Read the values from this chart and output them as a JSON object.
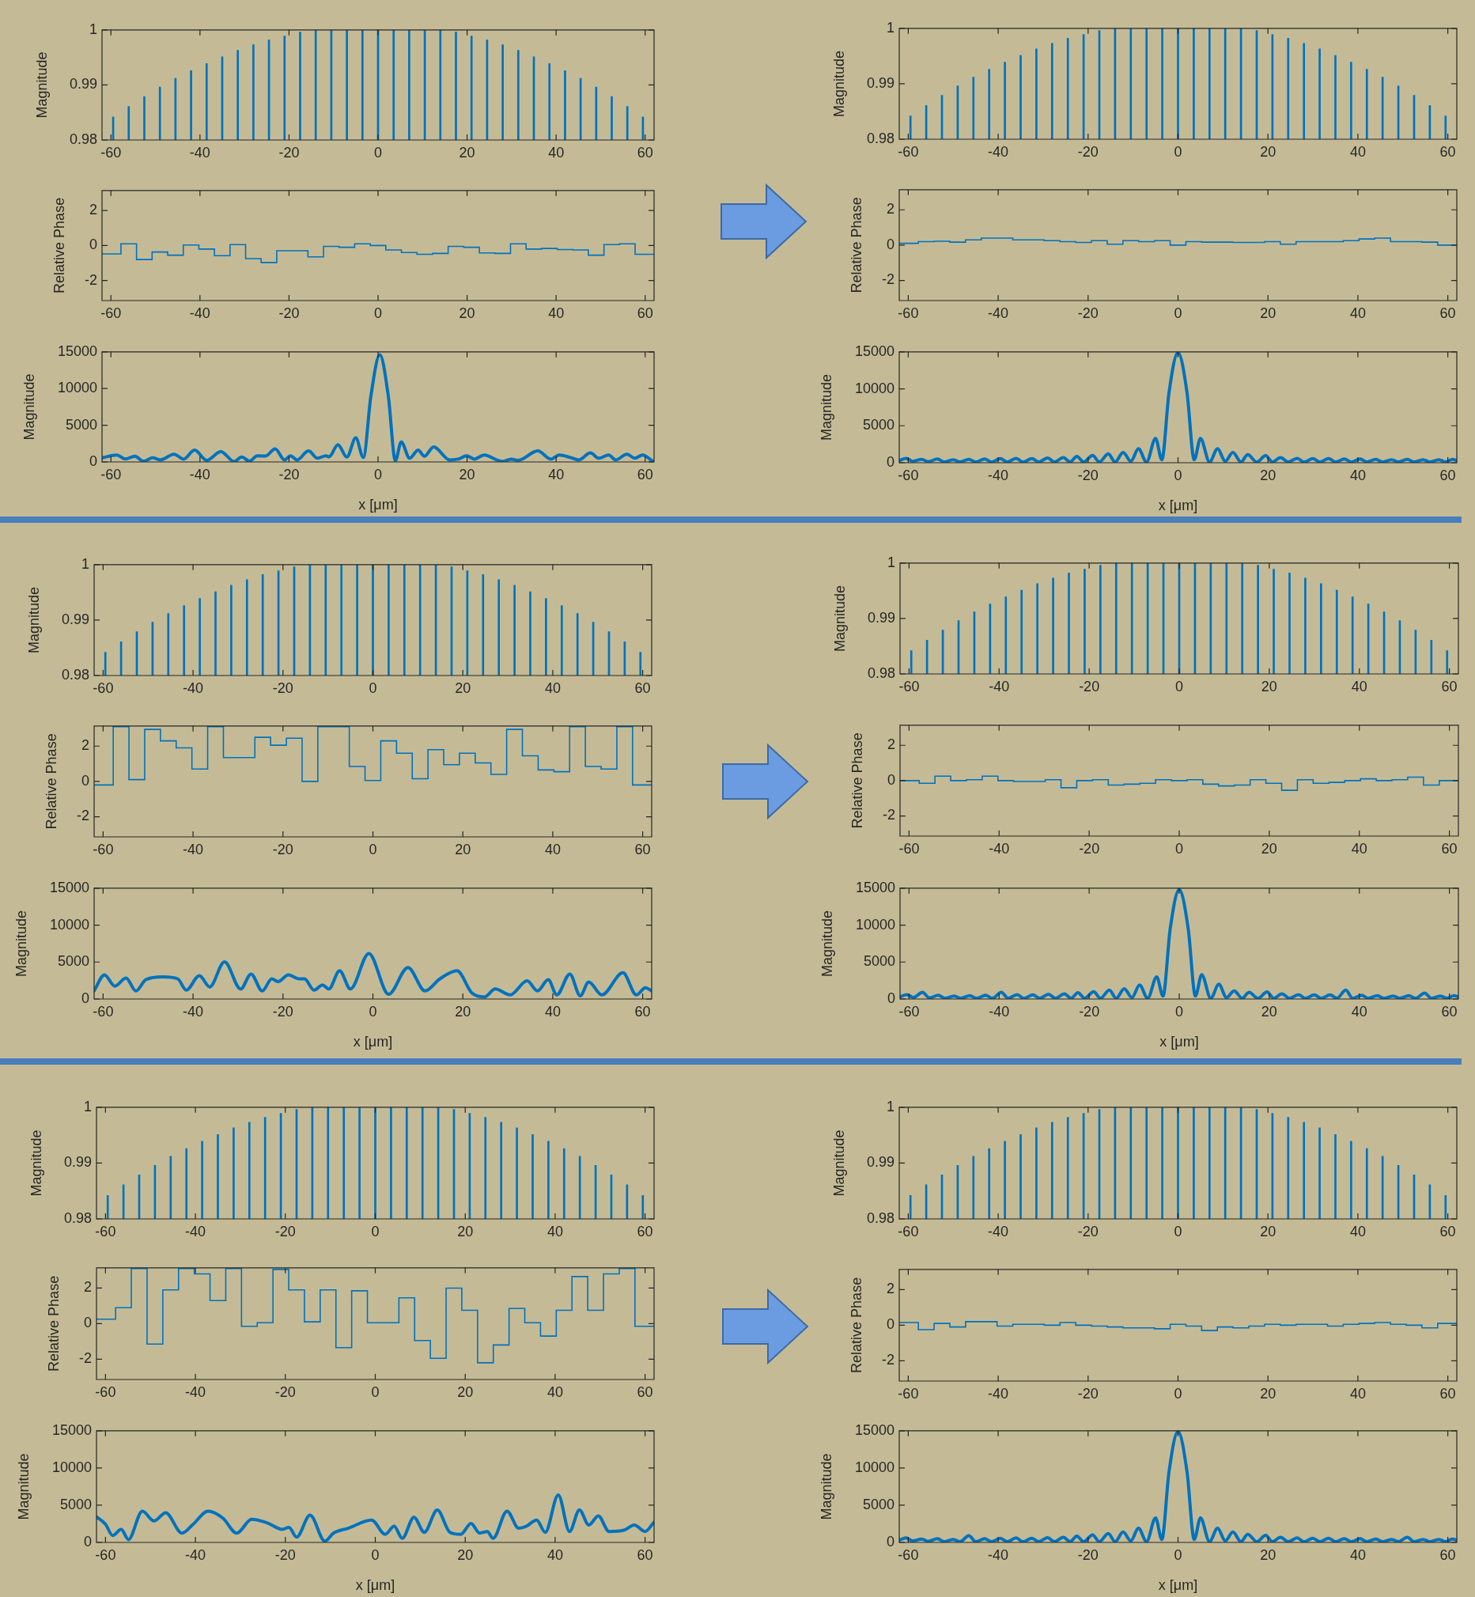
{
  "chart_data": [
    {
      "type": "bar",
      "x": [
        -59.5,
        -56,
        -52.5,
        -49,
        -45.5,
        -42,
        -38.5,
        -35,
        -31.5,
        -28,
        -24.5,
        -21,
        -17.5,
        -14,
        -10.5,
        -7,
        -3.5,
        0,
        3.5,
        7,
        10.5,
        14,
        17.5,
        21,
        24.5,
        28,
        31.5,
        35,
        38.5,
        42,
        45.5,
        49,
        52.5,
        56,
        59.5
      ],
      "values": [
        0.9842,
        0.9861,
        0.9879,
        0.9896,
        0.9912,
        0.9926,
        0.9939,
        0.9951,
        0.9963,
        0.9973,
        0.9982,
        0.9989,
        0.9996,
        1,
        1,
        1,
        1,
        1,
        1,
        1,
        1,
        1,
        0.9996,
        0.9989,
        0.9982,
        0.9973,
        0.9963,
        0.9951,
        0.9939,
        0.9926,
        0.9912,
        0.9896,
        0.9879,
        0.9861,
        0.9842
      ],
      "color": "#0072bd",
      "xlim": [
        -62,
        62
      ],
      "xticks": [
        -60,
        -40,
        -20,
        0,
        20,
        40,
        60
      ],
      "ylim": [
        0.98,
        1
      ],
      "yticks": [
        0.98,
        0.99,
        1
      ],
      "ylabel": "Magnitude"
    },
    {
      "type": "step",
      "x": [
        -62,
        -57.75,
        -54.25,
        -50.75,
        -47.25,
        -43.75,
        -40.25,
        -36.75,
        -33.25,
        -29.75,
        -26.25,
        -22.75,
        -19.25,
        -15.75,
        -12.25,
        -8.75,
        -5.25,
        -1.75,
        1.75,
        5.25,
        8.75,
        12.25,
        15.75,
        19.25,
        22.75,
        26.25,
        29.75,
        33.25,
        36.75,
        40.25,
        43.75,
        47.25,
        50.75,
        54.25,
        57.75,
        62
      ],
      "values": [
        -0.48,
        0.1,
        -0.8,
        -0.37,
        -0.55,
        0.03,
        -0.2,
        -0.58,
        0.05,
        -0.75,
        -0.97,
        -0.3,
        -0.3,
        -0.65,
        -0.05,
        -0.1,
        0.1,
        0,
        -0.25,
        -0.4,
        -0.5,
        -0.45,
        -0.05,
        -0.1,
        -0.42,
        -0.45,
        0.1,
        -0.2,
        -0.17,
        -0.23,
        -0.25,
        -0.55,
        0.05,
        0.1,
        -0.5,
        -0.5
      ],
      "color": "#0072bd",
      "xlim": [
        -62,
        62
      ],
      "xticks": [
        -60,
        -40,
        -20,
        0,
        20,
        40,
        60
      ],
      "ylim": [
        -3.1416,
        3.1416
      ],
      "yticks": [
        -2,
        0,
        2
      ],
      "ylabel": "Relative Phase"
    },
    {
      "type": "line",
      "x": [
        -62,
        -58.7,
        -56.8,
        -54.6,
        -52.7,
        -50.6,
        -48.9,
        -45.8,
        -43.7,
        -41.2,
        -38.5,
        -35.3,
        -32.3,
        -30.6,
        -28.9,
        -27.1,
        -25.3,
        -23.1,
        -21,
        -19.7,
        -18.2,
        -15.6,
        -13.6,
        -11.7,
        -11,
        -9,
        -7,
        -5,
        -3.3,
        -1.6,
        0.4,
        2.3,
        3.9,
        5.2,
        7.1,
        9,
        10.4,
        12.5,
        16.1,
        18,
        19.9,
        21.6,
        23.9,
        26.6,
        28,
        29.9,
        31.4,
        35.9,
        38.8,
        40.7,
        43.2,
        45.1,
        47.7,
        49.6,
        51.8,
        53.4,
        55.9,
        57.7,
        59.4,
        61.8
      ],
      "values": [
        560,
        950,
        400,
        780,
        100,
        560,
        280,
        1060,
        390,
        1620,
        220,
        1400,
        60,
        670,
        110,
        840,
        800,
        1780,
        280,
        840,
        280,
        1500,
        500,
        840,
        700,
        2340,
        670,
        3290,
        610,
        9000,
        14600,
        9000,
        170,
        2730,
        500,
        1620,
        780,
        2060,
        280,
        390,
        840,
        390,
        950,
        280,
        60,
        390,
        220,
        1500,
        390,
        950,
        610,
        280,
        1230,
        500,
        950,
        280,
        1060,
        500,
        950,
        60
      ],
      "color": "#0072bd",
      "xlim": [
        -62,
        62
      ],
      "xticks": [
        -60,
        -40,
        -20,
        0,
        20,
        40,
        60
      ],
      "ylim": [
        0,
        15000
      ],
      "yticks": [
        0,
        5000,
        10000,
        15000
      ],
      "ylabel": "Magnitude",
      "xlabel": "x [μm]"
    },
    {
      "type": "bar",
      "x": [
        -59.5,
        -56,
        -52.5,
        -49,
        -45.5,
        -42,
        -38.5,
        -35,
        -31.5,
        -28,
        -24.5,
        -21,
        -17.5,
        -14,
        -10.5,
        -7,
        -3.5,
        0,
        3.5,
        7,
        10.5,
        14,
        17.5,
        21,
        24.5,
        28,
        31.5,
        35,
        38.5,
        42,
        45.5,
        49,
        52.5,
        56,
        59.5
      ],
      "values": [
        0.9842,
        0.9861,
        0.9879,
        0.9896,
        0.9912,
        0.9926,
        0.9939,
        0.9951,
        0.9963,
        0.9973,
        0.9982,
        0.9989,
        0.9996,
        1,
        1,
        1,
        1,
        1,
        1,
        1,
        1,
        1,
        0.9996,
        0.9989,
        0.9982,
        0.9973,
        0.9963,
        0.9951,
        0.9939,
        0.9926,
        0.9912,
        0.9896,
        0.9879,
        0.9861,
        0.9842
      ],
      "color": "#0072bd",
      "xlim": [
        -62,
        62
      ],
      "xticks": [
        -60,
        -40,
        -20,
        0,
        20,
        40,
        60
      ],
      "ylim": [
        0.98,
        1
      ],
      "yticks": [
        0.98,
        0.99,
        1
      ],
      "ylabel": "Magnitude"
    },
    {
      "type": "step",
      "x": [
        -62,
        -57.75,
        -54.25,
        -50.75,
        -47.25,
        -43.75,
        -40.25,
        -36.75,
        -33.25,
        -29.75,
        -26.25,
        -22.75,
        -19.25,
        -15.75,
        -12.25,
        -8.75,
        -5.25,
        -1.75,
        1.75,
        5.25,
        8.75,
        12.25,
        15.75,
        19.25,
        22.75,
        26.25,
        29.75,
        33.25,
        36.75,
        40.25,
        43.75,
        47.25,
        50.75,
        54.25,
        57.75,
        62
      ],
      "values": [
        0.1,
        0.2,
        0.22,
        0.17,
        0.3,
        0.4,
        0.4,
        0.3,
        0.3,
        0.25,
        0.2,
        0.15,
        0.25,
        0.05,
        0.25,
        0.2,
        0.25,
        0,
        0.2,
        0.17,
        0.17,
        0.15,
        0.15,
        0.2,
        0.05,
        0.2,
        0.2,
        0.2,
        0.25,
        0.35,
        0.4,
        0.2,
        0.2,
        0.17,
        0,
        0
      ],
      "color": "#0072bd",
      "xlim": [
        -62,
        62
      ],
      "xticks": [
        -60,
        -40,
        -20,
        0,
        20,
        40,
        60
      ],
      "ylim": [
        -3.1416,
        3.1416
      ],
      "yticks": [
        -2,
        0,
        2
      ],
      "ylabel": "Relative Phase"
    },
    {
      "type": "line",
      "x": [
        -62,
        -60.5,
        -59,
        -57,
        -55.5,
        -53.5,
        -52,
        -50,
        -48.5,
        -46.5,
        -45,
        -43,
        -41.5,
        -39.5,
        -38,
        -36,
        -34.5,
        -32.5,
        -31,
        -29,
        -27.5,
        -25.5,
        -24,
        -22.5,
        -21,
        -19,
        -17.5,
        -15.5,
        -14,
        -12.2,
        -10.5,
        -8.8,
        -7,
        -5,
        -3.6,
        -2,
        0,
        2,
        3.6,
        5,
        7,
        8.8,
        10.5,
        12.2,
        14,
        15.5,
        17.5,
        19.5,
        21,
        22.8,
        24.5,
        26.5,
        28,
        30,
        31.5,
        33.5,
        35,
        37,
        38.5,
        40.5,
        42,
        44,
        45.5,
        47.5,
        49,
        51,
        52.5,
        54.5,
        56,
        58,
        59.5,
        61,
        62
      ],
      "values": [
        300,
        600,
        200,
        450,
        150,
        500,
        100,
        400,
        100,
        450,
        100,
        500,
        100,
        550,
        100,
        600,
        100,
        550,
        100,
        650,
        100,
        700,
        100,
        850,
        100,
        1000,
        100,
        1200,
        100,
        1400,
        200,
        1900,
        100,
        3300,
        400,
        9500,
        14900,
        9500,
        400,
        3300,
        100,
        1900,
        200,
        1400,
        100,
        1100,
        100,
        950,
        100,
        700,
        100,
        600,
        100,
        550,
        100,
        550,
        100,
        500,
        100,
        500,
        100,
        450,
        100,
        400,
        100,
        450,
        100,
        400,
        100,
        400,
        100,
        450,
        300
      ],
      "color": "#0072bd",
      "xlim": [
        -62,
        62
      ],
      "xticks": [
        -60,
        -40,
        -20,
        0,
        20,
        40,
        60
      ],
      "ylim": [
        0,
        15000
      ],
      "yticks": [
        0,
        5000,
        10000,
        15000
      ],
      "ylabel": "Magnitude",
      "xlabel": "x [μm]"
    },
    {
      "type": "bar",
      "x": [
        -59.5,
        -56,
        -52.5,
        -49,
        -45.5,
        -42,
        -38.5,
        -35,
        -31.5,
        -28,
        -24.5,
        -21,
        -17.5,
        -14,
        -10.5,
        -7,
        -3.5,
        0,
        3.5,
        7,
        10.5,
        14,
        17.5,
        21,
        24.5,
        28,
        31.5,
        35,
        38.5,
        42,
        45.5,
        49,
        52.5,
        56,
        59.5
      ],
      "values": [
        0.9842,
        0.9861,
        0.9879,
        0.9896,
        0.9912,
        0.9926,
        0.9939,
        0.9951,
        0.9963,
        0.9973,
        0.9982,
        0.9989,
        0.9996,
        1,
        1,
        1,
        1,
        1,
        1,
        1,
        1,
        1,
        0.9996,
        0.9989,
        0.9982,
        0.9973,
        0.9963,
        0.9951,
        0.9939,
        0.9926,
        0.9912,
        0.9896,
        0.9879,
        0.9861,
        0.9842
      ],
      "color": "#0072bd",
      "xlim": [
        -62,
        62
      ],
      "xticks": [
        -60,
        -40,
        -20,
        0,
        20,
        40,
        60
      ],
      "ylim": [
        0.98,
        1
      ],
      "yticks": [
        0.98,
        0.99,
        1
      ],
      "ylabel": "Magnitude"
    },
    {
      "type": "step",
      "x": [
        -62,
        -57.75,
        -54.25,
        -50.75,
        -47.25,
        -43.75,
        -40.25,
        -36.75,
        -33.25,
        -29.75,
        -26.25,
        -22.75,
        -19.25,
        -15.75,
        -12.25,
        -8.75,
        -5.25,
        -1.75,
        1.75,
        5.25,
        8.75,
        12.25,
        15.75,
        19.25,
        22.75,
        26.25,
        29.75,
        33.25,
        36.75,
        40.25,
        43.75,
        47.25,
        50.75,
        54.25,
        57.75,
        62
      ],
      "values": [
        -0.2,
        3.1,
        0.1,
        2.95,
        2.3,
        1.9,
        0.7,
        3.1,
        1.35,
        1.35,
        2.5,
        2.05,
        2.45,
        0,
        3.1,
        3.1,
        0.85,
        0.05,
        2.3,
        1.6,
        0.15,
        1.8,
        0.95,
        1.6,
        1.05,
        0.4,
        2.95,
        1.45,
        0.65,
        0.55,
        3.1,
        0.85,
        0.7,
        3.1,
        -0.2,
        -0.2
      ],
      "color": "#0072bd",
      "xlim": [
        -62,
        62
      ],
      "xticks": [
        -60,
        -40,
        -20,
        0,
        20,
        40,
        60
      ],
      "ylim": [
        -3.1416,
        3.1416
      ],
      "yticks": [
        -2,
        0,
        2
      ],
      "ylabel": "Relative Phase"
    },
    {
      "type": "line",
      "x": [
        -62,
        -59.7,
        -57.4,
        -54.9,
        -52.7,
        -50.5,
        -46.7,
        -43.4,
        -41.5,
        -38.6,
        -36.3,
        -33,
        -29.4,
        -27.1,
        -24.6,
        -22.5,
        -21.1,
        -18.8,
        -16.4,
        -15.2,
        -13.1,
        -11.2,
        -9.8,
        -7.4,
        -5,
        -0.9,
        3.5,
        7.8,
        11.6,
        14.9,
        18.7,
        22,
        24.8,
        27.2,
        30.5,
        34.3,
        36.6,
        39,
        40.9,
        43.8,
        46.1,
        48,
        50.9,
        55.6,
        58.6,
        60.6,
        62
      ],
      "values": [
        1100,
        3270,
        1750,
        2840,
        1090,
        2620,
        3000,
        2730,
        1200,
        3160,
        1640,
        5020,
        1360,
        3380,
        1090,
        2730,
        2350,
        3270,
        2730,
        2730,
        1200,
        1910,
        1360,
        3820,
        1360,
        6160,
        650,
        4260,
        1090,
        2730,
        3820,
        820,
        270,
        1360,
        550,
        2450,
        1090,
        2620,
        550,
        3380,
        440,
        2290,
        550,
        3550,
        550,
        1530,
        1100
      ],
      "color": "#0072bd",
      "xlim": [
        -62,
        62
      ],
      "xticks": [
        -60,
        -40,
        -20,
        0,
        20,
        40,
        60
      ],
      "ylim": [
        0,
        15000
      ],
      "yticks": [
        0,
        5000,
        10000,
        15000
      ],
      "ylabel": "Magnitude",
      "xlabel": "x [μm]"
    },
    {
      "type": "bar",
      "x": [
        -59.5,
        -56,
        -52.5,
        -49,
        -45.5,
        -42,
        -38.5,
        -35,
        -31.5,
        -28,
        -24.5,
        -21,
        -17.5,
        -14,
        -10.5,
        -7,
        -3.5,
        0,
        3.5,
        7,
        10.5,
        14,
        17.5,
        21,
        24.5,
        28,
        31.5,
        35,
        38.5,
        42,
        45.5,
        49,
        52.5,
        56,
        59.5
      ],
      "values": [
        0.9842,
        0.9861,
        0.9879,
        0.9896,
        0.9912,
        0.9926,
        0.9939,
        0.9951,
        0.9963,
        0.9973,
        0.9982,
        0.9989,
        0.9996,
        1,
        1,
        1,
        1,
        1,
        1,
        1,
        1,
        1,
        0.9996,
        0.9989,
        0.9982,
        0.9973,
        0.9963,
        0.9951,
        0.9939,
        0.9926,
        0.9912,
        0.9896,
        0.9879,
        0.9861,
        0.9842
      ],
      "color": "#0072bd",
      "xlim": [
        -62,
        62
      ],
      "xticks": [
        -60,
        -40,
        -20,
        0,
        20,
        40,
        60
      ],
      "ylim": [
        0.98,
        1
      ],
      "yticks": [
        0.98,
        0.99,
        1
      ],
      "ylabel": "Magnitude"
    },
    {
      "type": "step",
      "x": [
        -62,
        -57.75,
        -54.25,
        -50.75,
        -47.25,
        -43.75,
        -40.25,
        -36.75,
        -33.25,
        -29.75,
        -26.25,
        -22.75,
        -19.25,
        -15.75,
        -12.25,
        -8.75,
        -5.25,
        -1.75,
        1.75,
        5.25,
        8.75,
        12.25,
        15.75,
        19.25,
        22.75,
        26.25,
        29.75,
        33.25,
        36.75,
        40.25,
        43.75,
        47.25,
        50.75,
        54.25,
        57.75,
        62
      ],
      "values": [
        0,
        -0.15,
        0.25,
        0,
        0.05,
        0.25,
        0,
        -0.05,
        -0.05,
        0.05,
        -0.4,
        0,
        0.05,
        -0.25,
        -0.2,
        -0.15,
        0.05,
        0,
        0.05,
        -0.2,
        -0.3,
        -0.25,
        0.05,
        -0.15,
        -0.55,
        0.05,
        -0.15,
        -0.1,
        0,
        0.1,
        0,
        0.05,
        0.2,
        -0.25,
        0,
        0
      ],
      "color": "#0072bd",
      "xlim": [
        -62,
        62
      ],
      "xticks": [
        -60,
        -40,
        -20,
        0,
        20,
        40,
        60
      ],
      "ylim": [
        -3.1416,
        3.1416
      ],
      "yticks": [
        -2,
        0,
        2
      ],
      "ylabel": "Relative Phase"
    },
    {
      "type": "line",
      "x": [
        -62,
        -60.5,
        -59,
        -57,
        -55.5,
        -53.5,
        -52,
        -50,
        -48.5,
        -46.5,
        -45,
        -43,
        -41.5,
        -39.5,
        -38,
        -36,
        -34.5,
        -32.5,
        -31,
        -29,
        -27.5,
        -25.5,
        -24,
        -22.5,
        -21,
        -19,
        -17.5,
        -15.5,
        -14,
        -12.2,
        -10.5,
        -8.8,
        -7,
        -5,
        -3.6,
        -2,
        0,
        2,
        3.6,
        5,
        7,
        8.8,
        10.5,
        12.2,
        14,
        15.5,
        17.5,
        19.5,
        21,
        22.8,
        24.5,
        26.5,
        28,
        30,
        31.5,
        33.5,
        35,
        37,
        38.5,
        40.5,
        42,
        44,
        45.5,
        47.5,
        49,
        51,
        52.5,
        54.5,
        56,
        58,
        59.5,
        61,
        62
      ],
      "values": [
        300,
        600,
        200,
        900,
        150,
        500,
        100,
        400,
        100,
        450,
        100,
        500,
        100,
        900,
        100,
        600,
        100,
        550,
        100,
        650,
        100,
        700,
        100,
        850,
        100,
        1000,
        100,
        1200,
        100,
        1400,
        200,
        1900,
        100,
        3000,
        400,
        9500,
        14800,
        9500,
        400,
        3300,
        100,
        2000,
        200,
        1100,
        100,
        900,
        100,
        950,
        100,
        700,
        100,
        600,
        100,
        550,
        100,
        550,
        100,
        1200,
        100,
        500,
        100,
        450,
        100,
        400,
        100,
        450,
        100,
        800,
        100,
        400,
        100,
        450,
        300
      ],
      "color": "#0072bd",
      "xlim": [
        -62,
        62
      ],
      "xticks": [
        -60,
        -40,
        -20,
        0,
        20,
        40,
        60
      ],
      "ylim": [
        0,
        15000
      ],
      "yticks": [
        0,
        5000,
        10000,
        15000
      ],
      "ylabel": "Magnitude",
      "xlabel": "x [μm]"
    },
    {
      "type": "bar",
      "x": [
        -59.5,
        -56,
        -52.5,
        -49,
        -45.5,
        -42,
        -38.5,
        -35,
        -31.5,
        -28,
        -24.5,
        -21,
        -17.5,
        -14,
        -10.5,
        -7,
        -3.5,
        0,
        3.5,
        7,
        10.5,
        14,
        17.5,
        21,
        24.5,
        28,
        31.5,
        35,
        38.5,
        42,
        45.5,
        49,
        52.5,
        56,
        59.5
      ],
      "values": [
        0.9842,
        0.9861,
        0.9879,
        0.9896,
        0.9912,
        0.9926,
        0.9939,
        0.9951,
        0.9963,
        0.9973,
        0.9982,
        0.9989,
        0.9996,
        1,
        1,
        1,
        1,
        1,
        1,
        1,
        1,
        1,
        0.9996,
        0.9989,
        0.9982,
        0.9973,
        0.9963,
        0.9951,
        0.9939,
        0.9926,
        0.9912,
        0.9896,
        0.9879,
        0.9861,
        0.9842
      ],
      "color": "#0072bd",
      "xlim": [
        -62,
        62
      ],
      "xticks": [
        -60,
        -40,
        -20,
        0,
        20,
        40,
        60
      ],
      "ylim": [
        0.98,
        1
      ],
      "yticks": [
        0.98,
        0.99,
        1
      ],
      "ylabel": "Magnitude"
    },
    {
      "type": "step",
      "x": [
        -62,
        -57.75,
        -54.25,
        -50.75,
        -47.25,
        -43.75,
        -40.25,
        -36.75,
        -33.25,
        -29.75,
        -26.25,
        -22.75,
        -19.25,
        -15.75,
        -12.25,
        -8.75,
        -5.25,
        -1.75,
        1.75,
        5.25,
        8.75,
        12.25,
        15.75,
        19.25,
        22.75,
        26.25,
        29.75,
        33.25,
        36.75,
        40.25,
        43.75,
        47.25,
        50.75,
        54.25,
        57.75,
        62
      ],
      "values": [
        0.25,
        0.9,
        3.1,
        -1.15,
        1.9,
        3.1,
        2.8,
        1.3,
        3.1,
        -0.15,
        0.05,
        3.05,
        1.9,
        0.1,
        1.9,
        -1.35,
        1.85,
        0.05,
        0.05,
        1.45,
        -0.95,
        -1.95,
        2,
        0.75,
        -2.2,
        -1.2,
        0.85,
        0.05,
        -0.7,
        0.75,
        2.65,
        0.75,
        2.8,
        3.1,
        -0.15,
        -0.15
      ],
      "color": "#0072bd",
      "xlim": [
        -62,
        62
      ],
      "xticks": [
        -60,
        -40,
        -20,
        0,
        20,
        40,
        60
      ],
      "ylim": [
        -3.1416,
        3.1416
      ],
      "yticks": [
        -2,
        0,
        2
      ],
      "ylabel": "Relative Phase"
    },
    {
      "type": "line",
      "x": [
        -62,
        -60,
        -58.4,
        -56.5,
        -54.9,
        -51.8,
        -49.2,
        -46.6,
        -43,
        -40.5,
        -37.2,
        -33.9,
        -30.8,
        -27.5,
        -24,
        -20.7,
        -19.2,
        -17.5,
        -14.5,
        -11.2,
        -9.3,
        -6,
        -0.8,
        2.2,
        4.2,
        6,
        8.6,
        10.9,
        13.8,
        16.6,
        19,
        21.3,
        23.2,
        24.9,
        26.2,
        29.3,
        31.9,
        33.6,
        35.9,
        37.8,
        40.7,
        43.2,
        45.4,
        47.5,
        49.6,
        52,
        55.3,
        57.6,
        60,
        62
      ],
      "values": [
        3440,
        2450,
        930,
        1750,
        380,
        4200,
        2890,
        3980,
        1250,
        2450,
        4200,
        3270,
        1250,
        3110,
        2620,
        1750,
        2020,
        710,
        3660,
        160,
        1250,
        1910,
        3000,
        1090,
        2180,
        550,
        3380,
        1360,
        4360,
        1360,
        1090,
        2560,
        1250,
        1470,
        550,
        4200,
        1910,
        2180,
        3000,
        1360,
        6380,
        1470,
        4360,
        2350,
        3550,
        1470,
        1640,
        2350,
        1470,
        2730
      ],
      "color": "#0072bd",
      "xlim": [
        -62,
        62
      ],
      "xticks": [
        -60,
        -40,
        -20,
        0,
        20,
        40,
        60
      ],
      "ylim": [
        0,
        15000
      ],
      "yticks": [
        0,
        5000,
        10000,
        15000
      ],
      "ylabel": "Magnitude",
      "xlabel": "x [μm]"
    },
    {
      "type": "bar",
      "x": [
        -59.5,
        -56,
        -52.5,
        -49,
        -45.5,
        -42,
        -38.5,
        -35,
        -31.5,
        -28,
        -24.5,
        -21,
        -17.5,
        -14,
        -10.5,
        -7,
        -3.5,
        0,
        3.5,
        7,
        10.5,
        14,
        17.5,
        21,
        24.5,
        28,
        31.5,
        35,
        38.5,
        42,
        45.5,
        49,
        52.5,
        56,
        59.5
      ],
      "values": [
        0.9842,
        0.9861,
        0.9879,
        0.9896,
        0.9912,
        0.9926,
        0.9939,
        0.9951,
        0.9963,
        0.9973,
        0.9982,
        0.9989,
        0.9996,
        1,
        1,
        1,
        1,
        1,
        1,
        1,
        1,
        1,
        0.9996,
        0.9989,
        0.9982,
        0.9973,
        0.9963,
        0.9951,
        0.9939,
        0.9926,
        0.9912,
        0.9896,
        0.9879,
        0.9861,
        0.9842
      ],
      "color": "#0072bd",
      "xlim": [
        -62,
        62
      ],
      "xticks": [
        -60,
        -40,
        -20,
        0,
        20,
        40,
        60
      ],
      "ylim": [
        0.98,
        1
      ],
      "yticks": [
        0.98,
        0.99,
        1
      ],
      "ylabel": "Magnitude"
    },
    {
      "type": "step",
      "x": [
        -62,
        -57.75,
        -54.25,
        -50.75,
        -47.25,
        -43.75,
        -40.25,
        -36.75,
        -33.25,
        -29.75,
        -26.25,
        -22.75,
        -19.25,
        -15.75,
        -12.25,
        -8.75,
        -5.25,
        -1.75,
        1.75,
        5.25,
        8.75,
        12.25,
        15.75,
        19.25,
        22.75,
        26.25,
        29.75,
        33.25,
        36.75,
        40.25,
        43.75,
        47.25,
        50.75,
        54.25,
        57.75,
        62
      ],
      "values": [
        0.15,
        -0.25,
        0.1,
        -0.1,
        0.2,
        0.2,
        -0.05,
        0.05,
        0.05,
        0,
        0.15,
        0,
        -0.05,
        -0.1,
        -0.15,
        -0.15,
        -0.2,
        0.05,
        -0.05,
        -0.3,
        -0.1,
        -0.15,
        -0.05,
        0.05,
        0,
        0.05,
        0.05,
        -0.05,
        0.05,
        0.1,
        0.15,
        0.05,
        0,
        -0.15,
        0.1,
        0.1
      ],
      "color": "#0072bd",
      "xlim": [
        -62,
        62
      ],
      "xticks": [
        -60,
        -40,
        -20,
        0,
        20,
        40,
        60
      ],
      "ylim": [
        -3.1416,
        3.1416
      ],
      "yticks": [
        -2,
        0,
        2
      ],
      "ylabel": "Relative Phase"
    },
    {
      "type": "line",
      "x": [
        -62,
        -60.5,
        -59,
        -57,
        -55.5,
        -53.5,
        -52,
        -50,
        -48.5,
        -46.5,
        -45,
        -43,
        -41.5,
        -39.5,
        -38,
        -36,
        -34.5,
        -32.5,
        -31,
        -29,
        -27.5,
        -25.5,
        -24,
        -22.5,
        -21,
        -19,
        -17.5,
        -15.5,
        -14,
        -12.2,
        -10.5,
        -8.8,
        -7,
        -5,
        -3.6,
        -2,
        0,
        2,
        3.6,
        5,
        7,
        8.8,
        10.5,
        12.2,
        14,
        15.5,
        17.5,
        19.5,
        21,
        22.8,
        24.5,
        26.5,
        28,
        30,
        31.5,
        33.5,
        35,
        37,
        38.5,
        40.5,
        42,
        44,
        45.5,
        47.5,
        49,
        51,
        52.5,
        54.5,
        56,
        58,
        59.5,
        61,
        62
      ],
      "values": [
        300,
        600,
        200,
        450,
        150,
        500,
        100,
        400,
        100,
        900,
        100,
        500,
        100,
        550,
        100,
        600,
        100,
        550,
        100,
        650,
        100,
        700,
        100,
        850,
        100,
        1000,
        100,
        1200,
        100,
        1400,
        200,
        1900,
        100,
        3300,
        400,
        9500,
        14900,
        9500,
        400,
        3300,
        100,
        1900,
        200,
        1400,
        100,
        1100,
        100,
        950,
        100,
        700,
        100,
        600,
        100,
        550,
        100,
        550,
        100,
        500,
        100,
        500,
        100,
        450,
        100,
        400,
        100,
        700,
        100,
        400,
        100,
        400,
        100,
        450,
        300
      ],
      "color": "#0072bd",
      "xlim": [
        -62,
        62
      ],
      "xticks": [
        -60,
        -40,
        -20,
        0,
        20,
        40,
        60
      ],
      "ylim": [
        0,
        15000
      ],
      "yticks": [
        0,
        5000,
        10000,
        15000
      ],
      "ylabel": "Magnitude",
      "xlabel": "x [μm]"
    }
  ]
}
